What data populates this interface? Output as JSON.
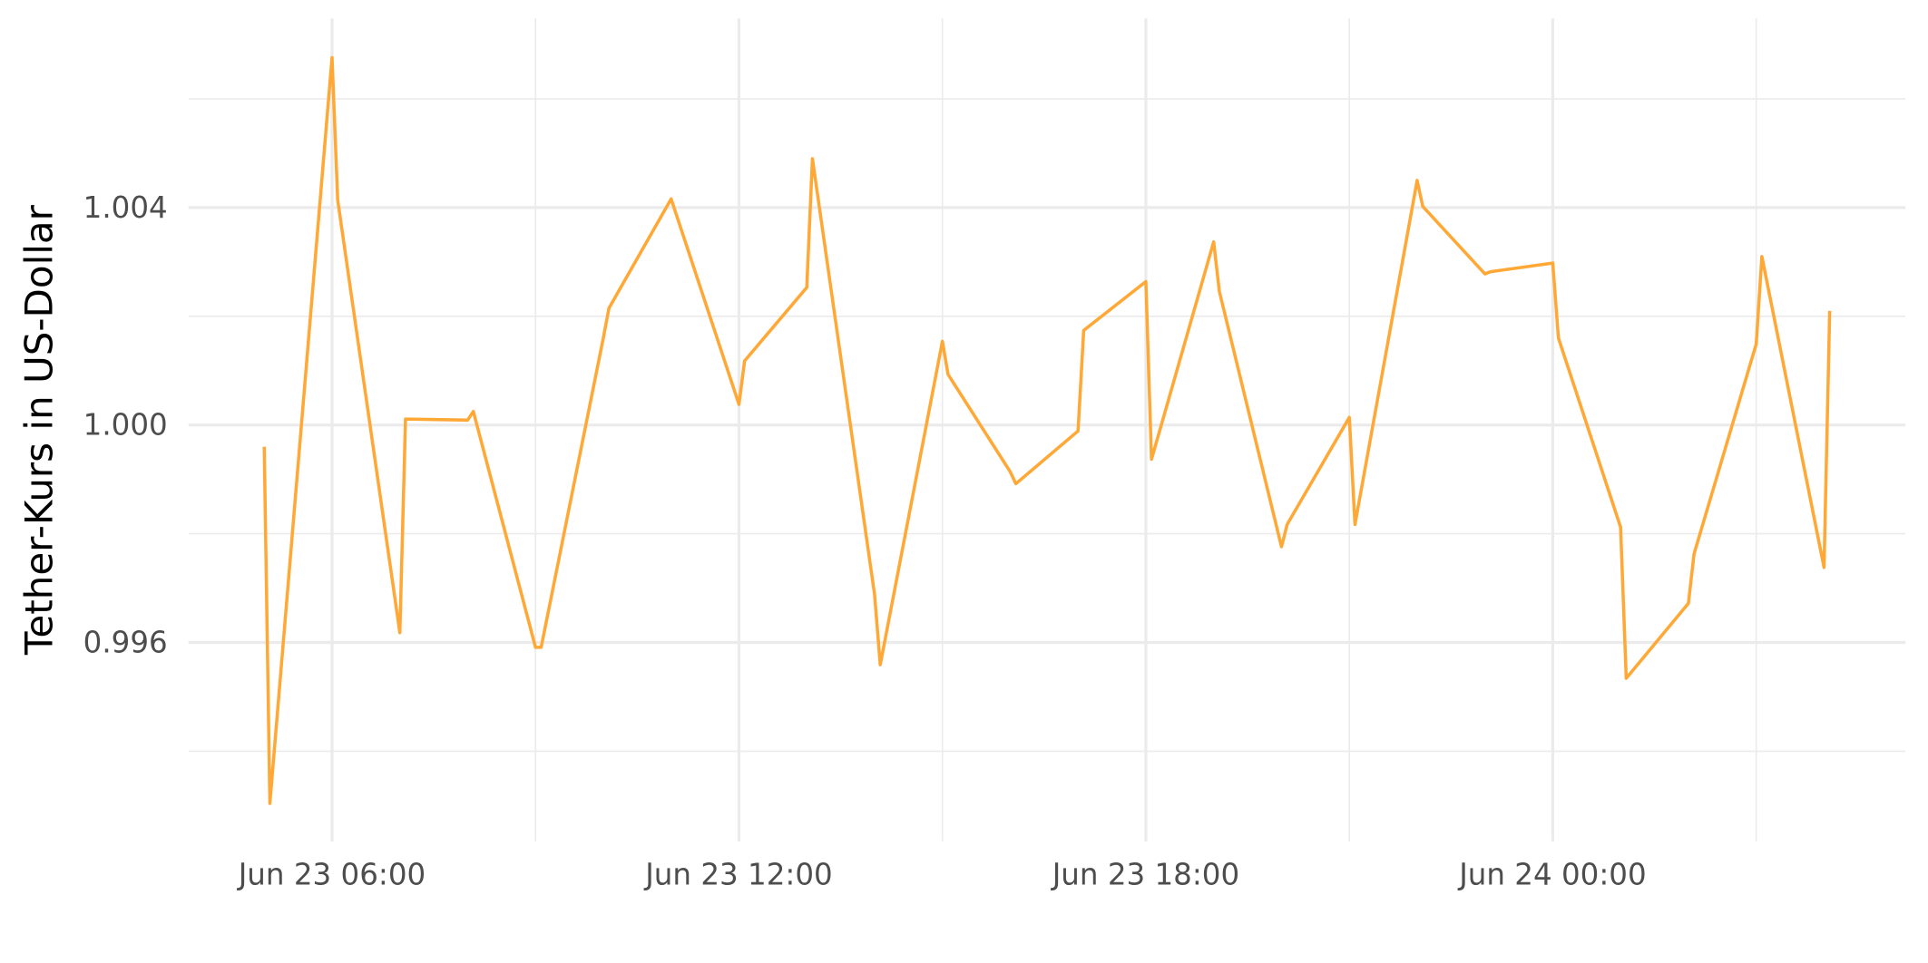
{
  "chart_data": {
    "type": "line",
    "y_label": "Tether-Kurs in US-Dollar",
    "color": "#ffa836",
    "x": [
      "Jun 23 05:00",
      "Jun 23 05:05",
      "Jun 23 06:00",
      "Jun 23 06:05",
      "Jun 23 07:00",
      "Jun 23 07:05",
      "Jun 23 08:00",
      "Jun 23 08:05",
      "Jun 23 09:00",
      "Jun 23 09:05",
      "Jun 23 10:00",
      "Jun 23 10:05",
      "Jun 23 11:00",
      "Jun 23 12:00",
      "Jun 23 12:05",
      "Jun 23 13:00",
      "Jun 23 13:05",
      "Jun 23 14:00",
      "Jun 23 14:05",
      "Jun 23 15:00",
      "Jun 23 15:05",
      "Jun 23 16:00",
      "Jun 23 16:05",
      "Jun 23 17:00",
      "Jun 23 17:05",
      "Jun 23 18:00",
      "Jun 23 18:05",
      "Jun 23 19:00",
      "Jun 23 19:05",
      "Jun 23 20:00",
      "Jun 23 20:05",
      "Jun 23 21:00",
      "Jun 23 21:05",
      "Jun 23 22:00",
      "Jun 23 22:05",
      "Jun 23 23:00",
      "Jun 23 23:05",
      "Jun 24 00:00",
      "Jun 24 00:05",
      "Jun 24 01:00",
      "Jun 24 01:05",
      "Jun 24 02:00",
      "Jun 24 02:05",
      "Jun 24 03:00",
      "Jun 24 03:05",
      "Jun 24 04:00",
      "Jun 24 04:05"
    ],
    "values": [
      0.9996,
      0.99304,
      1.00676,
      1.00414,
      0.99618,
      1.00011,
      1.00009,
      1.00025,
      0.99591,
      0.99591,
      1.0016,
      1.00215,
      1.00416,
      1.00038,
      1.00118,
      1.00253,
      1.0049,
      0.99688,
      0.99559,
      1.00154,
      1.00093,
      0.99914,
      0.99892,
      0.99989,
      1.00174,
      1.00264,
      0.99937,
      1.00337,
      1.00246,
      0.99776,
      0.99817,
      1.00014,
      0.99817,
      1.0045,
      1.00402,
      1.00278,
      1.00282,
      1.00298,
      1.0016,
      0.99812,
      0.99534,
      0.99672,
      0.99763,
      1.00149,
      1.0031,
      0.99738,
      1.0021
    ],
    "xlim": [
      "Jun 23 03:53",
      "Jun 24 05:12"
    ],
    "xticks": [
      "Jun 23 06:00",
      "Jun 23 12:00",
      "Jun 23 18:00",
      "Jun 24 00:00"
    ],
    "x_minor_ticks": [
      "Jun 23 09:00",
      "Jun 23 15:00",
      "Jun 23 21:00",
      "Jun 24 03:00"
    ],
    "ylim": [
      0.99234,
      1.00748
    ],
    "yticks": [
      0.996,
      {
        "value": 1,
        "label": "1.000"
      },
      1.004
    ],
    "y_minor_ticks": [
      0.994,
      0.998,
      1.002,
      1.006
    ],
    "grid": true
  }
}
